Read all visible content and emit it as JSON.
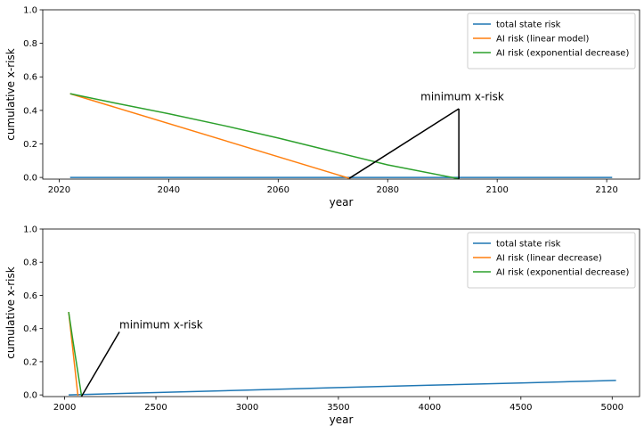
{
  "chart_data": [
    {
      "type": "line",
      "xlabel": "year",
      "ylabel": "cumulative x-risk",
      "xlim": [
        2017,
        2126
      ],
      "ylim": [
        -0.01,
        1.0
      ],
      "xticks": [
        2020,
        2040,
        2060,
        2080,
        2100,
        2120
      ],
      "yticks": [
        0.0,
        0.2,
        0.4,
        0.6,
        0.8,
        1.0
      ],
      "ytick_labels": [
        "0.0",
        "0.2",
        "0.4",
        "0.6",
        "0.8",
        "1.0"
      ],
      "legend_position": "top-right",
      "series": [
        {
          "name": "total state risk",
          "color": "#1f77b4",
          "x": [
            2022,
            2121
          ],
          "y": [
            0.0,
            0.0
          ]
        },
        {
          "name": "AI risk (linear model)",
          "color": "#ff7f0e",
          "x": [
            2022,
            2073
          ],
          "y": [
            0.5,
            -0.005
          ]
        },
        {
          "name": "AI risk (exponential decrease)",
          "color": "#2ca02c",
          "x": [
            2022,
            2030,
            2040,
            2050,
            2060,
            2070,
            2080,
            2093
          ],
          "y": [
            0.5,
            0.445,
            0.38,
            0.31,
            0.235,
            0.155,
            0.075,
            -0.008
          ]
        }
      ],
      "annotations": [
        {
          "text": "minimum x-risk",
          "text_x": 2086,
          "text_y": 0.46,
          "tip_x": 2093,
          "tip_y": 0.41,
          "targets": [
            [
              2073,
              -0.005
            ],
            [
              2093,
              -0.008
            ]
          ]
        }
      ]
    },
    {
      "type": "line",
      "xlabel": "year",
      "ylabel": "cumulative x-risk",
      "xlim": [
        1880,
        5150
      ],
      "ylim": [
        -0.01,
        1.0
      ],
      "xticks": [
        2000,
        2500,
        3000,
        3500,
        4000,
        4500,
        5000
      ],
      "yticks": [
        0.0,
        0.2,
        0.4,
        0.6,
        0.8,
        1.0
      ],
      "ytick_labels": [
        "0.0",
        "0.2",
        "0.4",
        "0.6",
        "0.8",
        "1.0"
      ],
      "legend_position": "top-right",
      "series": [
        {
          "name": "total state risk",
          "color": "#1f77b4",
          "x": [
            2022,
            2500,
            3000,
            3500,
            4000,
            4500,
            5021
          ],
          "y": [
            0.0,
            0.014,
            0.029,
            0.044,
            0.058,
            0.072,
            0.087
          ]
        },
        {
          "name": "AI risk (linear decrease)",
          "color": "#ff7f0e",
          "x": [
            2022,
            2073
          ],
          "y": [
            0.5,
            -0.005
          ]
        },
        {
          "name": "AI risk (exponential decrease)",
          "color": "#2ca02c",
          "x": [
            2022,
            2045,
            2070,
            2093
          ],
          "y": [
            0.5,
            0.33,
            0.155,
            -0.008
          ]
        }
      ],
      "annotations": [
        {
          "text": "minimum x-risk",
          "text_x": 2300,
          "text_y": 0.4,
          "tip_x": 2300,
          "tip_y": 0.38,
          "targets": [
            [
              2093,
              -0.008
            ]
          ]
        }
      ]
    }
  ]
}
